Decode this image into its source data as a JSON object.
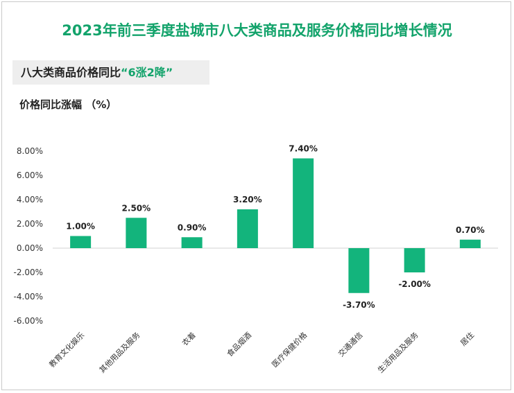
{
  "chart_data": {
    "type": "bar",
    "title": "2023年前三季度盐城市八大类商品及服务价格同比增长情况",
    "subtitle_prefix": "八大类商品价格同比",
    "subtitle_highlight": "“6涨2降”",
    "ylabel": "价格同比涨幅 （%）",
    "xlabel": "",
    "ylim": [
      -6,
      8
    ],
    "yticks": [
      8,
      6,
      4,
      2,
      0,
      -2,
      -4,
      -6
    ],
    "ytick_labels": [
      "8.00%",
      "6.00%",
      "4.00%",
      "2.00%",
      "0.00%",
      "-2.00%",
      "-4.00%",
      "-6.00%"
    ],
    "categories": [
      "教育文化娱乐",
      "其他用品及服务",
      "衣着",
      "食品烟酒",
      "医疗保健价格",
      "交通通信",
      "生活用品及服务",
      "居住"
    ],
    "values": [
      1.0,
      2.5,
      0.9,
      3.2,
      7.4,
      -3.7,
      -2.0,
      0.7
    ],
    "data_labels": [
      "1.00%",
      "2.50%",
      "0.90%",
      "3.20%",
      "7.40%",
      "-3.70%",
      "-2.00%",
      "0.70%"
    ],
    "bar_color": "#13b47c",
    "grid": false
  },
  "colors": {
    "title": "#13a36b",
    "highlight": "#13a36b",
    "bar": "#13b47c"
  }
}
